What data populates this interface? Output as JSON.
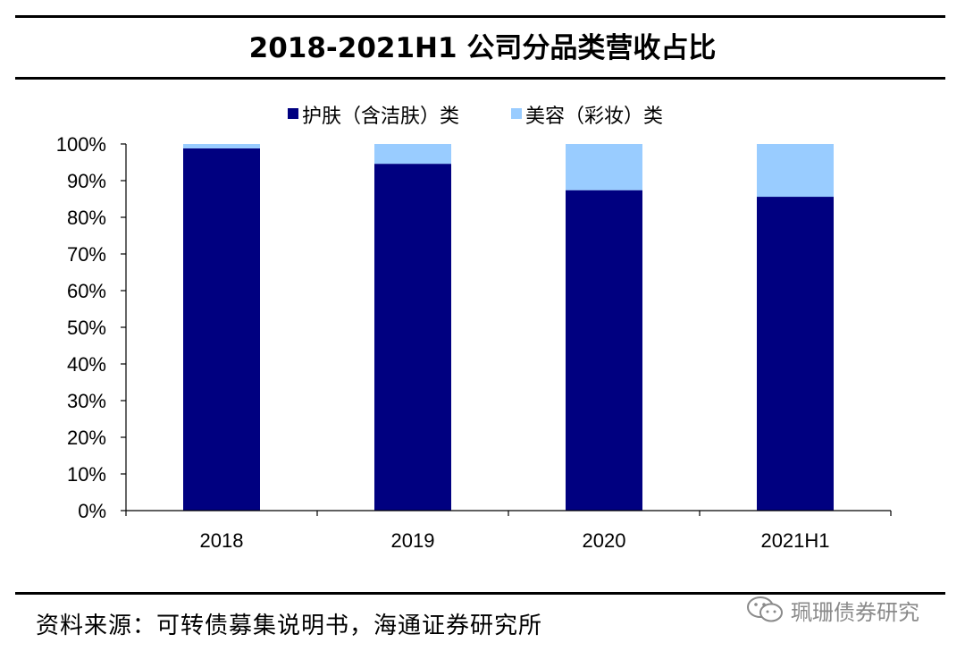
{
  "title": "2018-2021H1 公司分品类营收占比",
  "source": "资料来源：可转债募集说明书，海通证券研究所",
  "watermark": "珮珊债券研究",
  "chart_data": {
    "type": "bar",
    "stacked": true,
    "categories": [
      "2018",
      "2019",
      "2020",
      "2021H1"
    ],
    "series": [
      {
        "name": "护肤（含洁肤）类",
        "color": "#000080",
        "values": [
          98.8,
          94.6,
          87.4,
          85.6
        ]
      },
      {
        "name": "美容（彩妆）类",
        "color": "#99ccff",
        "values": [
          1.2,
          5.4,
          12.6,
          14.4
        ]
      }
    ],
    "y_ticks": [
      "0%",
      "10%",
      "20%",
      "30%",
      "40%",
      "50%",
      "60%",
      "70%",
      "80%",
      "90%",
      "100%"
    ],
    "ylim": [
      0,
      100
    ],
    "legend": "top-center",
    "grid": false
  }
}
